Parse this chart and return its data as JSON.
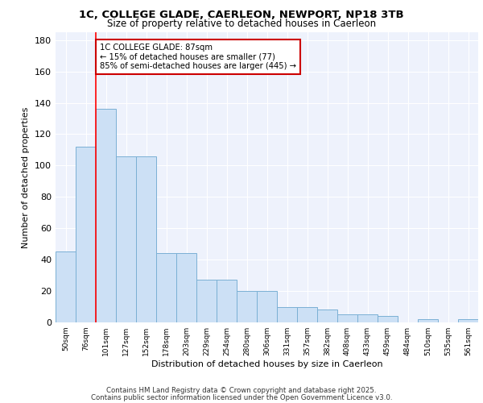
{
  "title1": "1C, COLLEGE GLADE, CAERLEON, NEWPORT, NP18 3TB",
  "title2": "Size of property relative to detached houses in Caerleon",
  "xlabel": "Distribution of detached houses by size in Caerleon",
  "ylabel": "Number of detached properties",
  "categories": [
    "50sqm",
    "76sqm",
    "101sqm",
    "127sqm",
    "152sqm",
    "178sqm",
    "203sqm",
    "229sqm",
    "254sqm",
    "280sqm",
    "306sqm",
    "331sqm",
    "357sqm",
    "382sqm",
    "408sqm",
    "433sqm",
    "459sqm",
    "484sqm",
    "510sqm",
    "535sqm",
    "561sqm"
  ],
  "values": [
    45,
    112,
    136,
    106,
    106,
    44,
    44,
    27,
    27,
    20,
    20,
    10,
    10,
    8,
    5,
    5,
    4,
    0,
    2,
    0,
    2
  ],
  "bar_color": "#cce0f5",
  "bar_edge_color": "#7ab0d4",
  "redline_x": 1.5,
  "annotation_text": "1C COLLEGE GLADE: 87sqm\n← 15% of detached houses are smaller (77)\n85% of semi-detached houses are larger (445) →",
  "annotation_box_color": "#ffffff",
  "annotation_box_edge": "#cc0000",
  "ylim": [
    0,
    185
  ],
  "yticks": [
    0,
    20,
    40,
    60,
    80,
    100,
    120,
    140,
    160,
    180
  ],
  "bg_color": "#eef2fc",
  "footer1": "Contains HM Land Registry data © Crown copyright and database right 2025.",
  "footer2": "Contains public sector information licensed under the Open Government Licence v3.0."
}
